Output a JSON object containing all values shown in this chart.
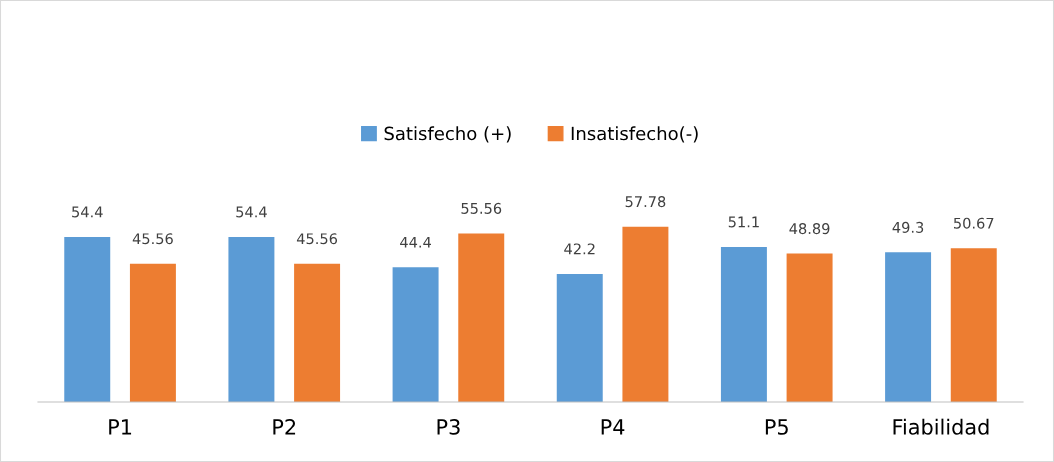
{
  "chart_data": {
    "type": "bar",
    "categories": [
      "P1",
      "P2",
      "P3",
      "P4",
      "P5",
      "Fiabilidad"
    ],
    "series": [
      {
        "name": "Satisfecho (+)",
        "color": "#5b9bd5",
        "values": [
          54.4,
          54.4,
          44.4,
          42.2,
          51.1,
          49.3
        ]
      },
      {
        "name": "Insatisfecho(-)",
        "color": "#ed7d31",
        "values": [
          45.56,
          45.56,
          55.56,
          57.78,
          48.89,
          50.67
        ]
      }
    ],
    "data_labels": true,
    "legend": "top",
    "grid": false
  }
}
